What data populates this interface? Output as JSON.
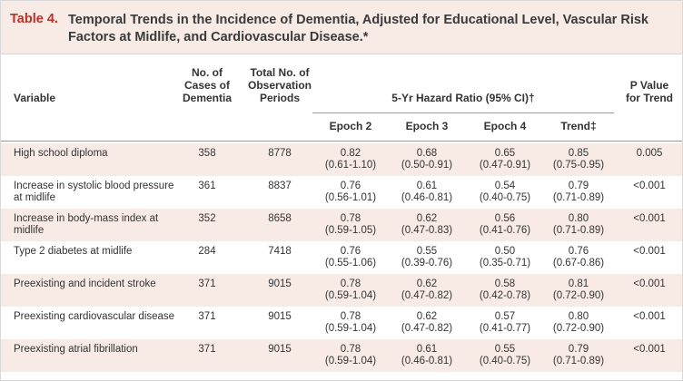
{
  "table": {
    "number": "Table 4.",
    "title": "Temporal Trends in the Incidence of Dementia, Adjusted for Educational Level, Vascular Risk Factors at Midlife, and Cardiovascular Disease.*"
  },
  "headers": {
    "variable": "Variable",
    "cases": [
      "No. of",
      "Cases of",
      "Dementia"
    ],
    "periods": [
      "Total No. of",
      "Observation",
      "Periods"
    ],
    "hazard": "5-Yr Hazard Ratio (95% CI)†",
    "epoch2": "Epoch 2",
    "epoch3": "Epoch 3",
    "epoch4": "Epoch 4",
    "trend": "Trend‡",
    "pvalue": [
      "P Value",
      "for Trend"
    ]
  },
  "rows": [
    {
      "variable": [
        "High school diploma"
      ],
      "cases": "358",
      "periods": "8778",
      "e2": [
        "0.82",
        "(0.61-1.10)"
      ],
      "e3": [
        "0.68",
        "(0.50-0.91)"
      ],
      "e4": [
        "0.65",
        "(0.47-0.91)"
      ],
      "trend": [
        "0.85",
        "(0.75-0.95)"
      ],
      "p": "0.005"
    },
    {
      "variable": [
        "Increase in systolic blood pressure",
        "at midlife"
      ],
      "cases": "361",
      "periods": "8837",
      "e2": [
        "0.76",
        "(0.56-1.01)"
      ],
      "e3": [
        "0.61",
        "(0.46-0.81)"
      ],
      "e4": [
        "0.54",
        "(0.40-0.75)"
      ],
      "trend": [
        "0.79",
        "(0.71-0.89)"
      ],
      "p": "<0.001"
    },
    {
      "variable": [
        "Increase in body-mass index at",
        "midlife"
      ],
      "cases": "352",
      "periods": "8658",
      "e2": [
        "0.78",
        "(0.59-1.05)"
      ],
      "e3": [
        "0.62",
        "(0.47-0.83)"
      ],
      "e4": [
        "0.56",
        "(0.41-0.76)"
      ],
      "trend": [
        "0.80",
        "(0.71-0.89)"
      ],
      "p": "<0.001"
    },
    {
      "variable": [
        "Type 2 diabetes at midlife"
      ],
      "cases": "284",
      "periods": "7418",
      "e2": [
        "0.76",
        "(0.55-1.06)"
      ],
      "e3": [
        "0.55",
        "(0.39-0.76)"
      ],
      "e4": [
        "0.50",
        "(0.35-0.71)"
      ],
      "trend": [
        "0.76",
        "(0.67-0.86)"
      ],
      "p": "<0.001"
    },
    {
      "variable": [
        "Preexisting and incident stroke"
      ],
      "cases": "371",
      "periods": "9015",
      "e2": [
        "0.78",
        "(0.59-1.04)"
      ],
      "e3": [
        "0.62",
        "(0.47-0.82)"
      ],
      "e4": [
        "0.58",
        "(0.42-0.78)"
      ],
      "trend": [
        "0.81",
        "(0.72-0.90)"
      ],
      "p": "<0.001"
    },
    {
      "variable": [
        "Preexisting cardiovascular disease"
      ],
      "cases": "371",
      "periods": "9015",
      "e2": [
        "0.78",
        "(0.59-1.04)"
      ],
      "e3": [
        "0.62",
        "(0.47-0.82)"
      ],
      "e4": [
        "0.57",
        "(0.41-0.77)"
      ],
      "trend": [
        "0.80",
        "(0.72-0.90)"
      ],
      "p": "<0.001"
    },
    {
      "variable": [
        "Preexisting atrial fibrillation"
      ],
      "cases": "371",
      "periods": "9015",
      "e2": [
        "0.78",
        "(0.59-1.04)"
      ],
      "e3": [
        "0.61",
        "(0.46-0.81)"
      ],
      "e4": [
        "0.55",
        "(0.40-0.75)"
      ],
      "trend": [
        "0.79",
        "(0.71-0.89)"
      ],
      "p": "<0.001"
    }
  ]
}
